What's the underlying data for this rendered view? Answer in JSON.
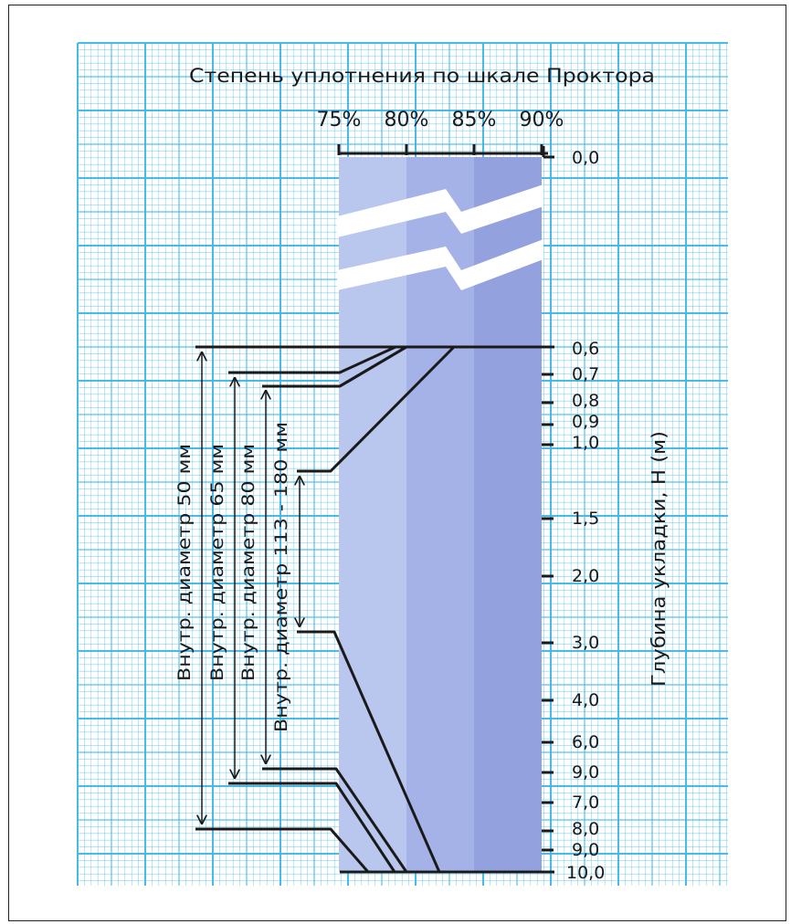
{
  "title": "Степень уплотнения по шкале Проктора",
  "compaction_ticks": [
    "75%",
    "80%",
    "85%",
    "90%"
  ],
  "depth_ticks": [
    "0,0",
    "0,6",
    "0,7",
    "0,8",
    "0,9",
    "1,0",
    "1,5",
    "2,0",
    "3,0",
    "4,0",
    "6,0",
    "9,0",
    "7,0",
    "8,0",
    "9,0",
    "10,0"
  ],
  "depth_axis_label": "Глубина укладки, H (м)",
  "pipes": [
    {
      "label": "Внутр. диаметр 50 мм"
    },
    {
      "label": "Внутр. диаметр 65 мм"
    },
    {
      "label": "Внутр. диаметр 80 мм"
    },
    {
      "label": "Внутр. диаметр 113 - 180 мм"
    }
  ],
  "colors": {
    "grid": "#3fb8e6",
    "band75": "#b9c6ee",
    "band80": "#a5b2e7",
    "band85": "#93a1df",
    "curve": "#1a1a1a"
  }
}
